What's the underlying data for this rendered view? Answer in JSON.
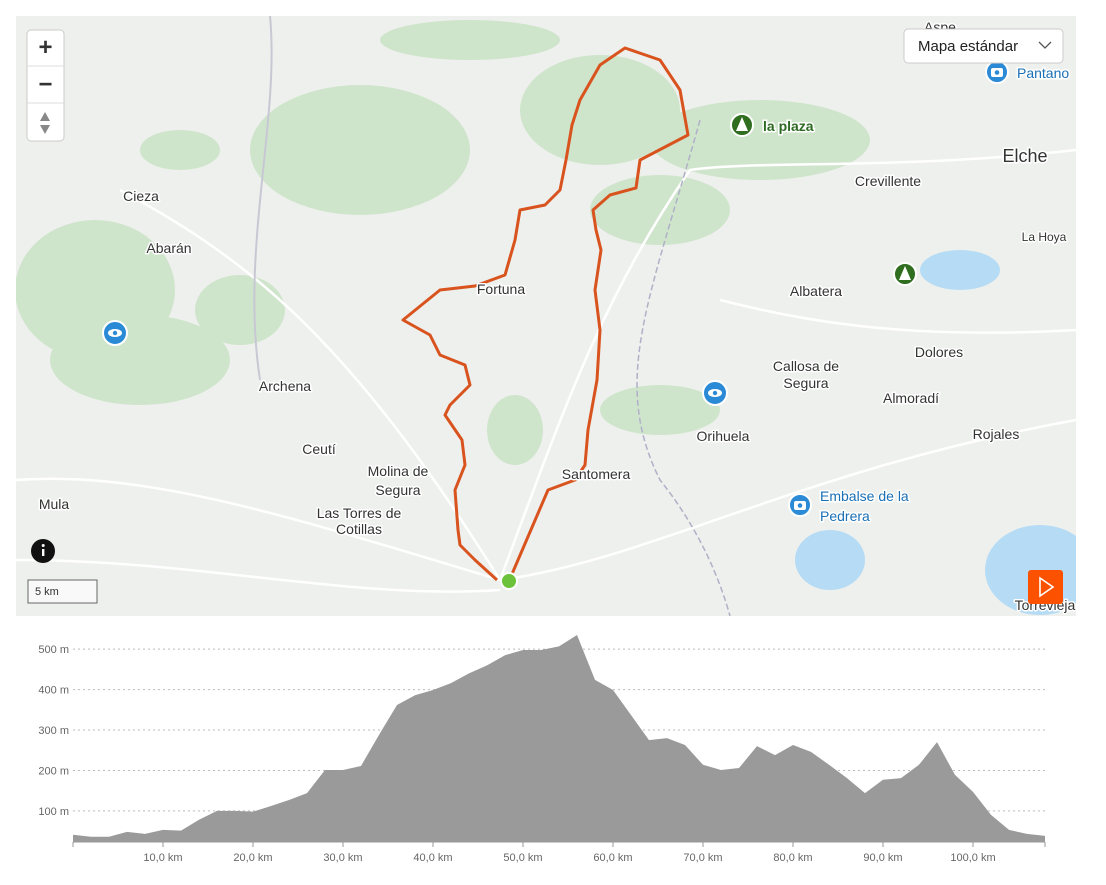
{
  "map": {
    "zoom_in": "+",
    "zoom_out": "−",
    "style_selector": "Mapa estándar",
    "scale": "5 km",
    "places": [
      "Aspe",
      "Cieza",
      "Abarán",
      "Archena",
      "Ceutí",
      [
        "Molina de",
        "Segura"
      ],
      [
        "Las Torres de",
        "Cotillas"
      ],
      "Mula",
      "Fortuna",
      "Santomera",
      "Orihuela",
      [
        "Callosa de",
        "Segura"
      ],
      "Albatera",
      "Crevillente",
      "Elche",
      "La Hoya",
      "Dolores",
      "Almoradí",
      "Rojales",
      "Torrevieja"
    ],
    "pois": [
      "Pantano",
      "la plaza",
      [
        "Embalse de la",
        "Pedrera"
      ]
    ]
  },
  "chart_data": {
    "type": "area",
    "color": "#9a9a9a",
    "x": [
      0,
      2,
      4,
      6,
      8,
      10,
      12,
      14,
      16,
      18,
      20,
      22,
      24,
      26,
      28,
      30,
      32,
      34,
      36,
      38,
      40,
      42,
      44,
      46,
      48,
      50,
      52,
      54,
      56,
      58,
      60,
      62,
      64,
      66,
      68,
      70,
      72,
      74,
      76,
      78,
      80,
      82,
      84,
      86,
      88,
      90,
      92,
      94,
      96,
      98,
      100,
      102,
      104,
      106,
      108
    ],
    "values": [
      41,
      36,
      36,
      48,
      43,
      53,
      51,
      78,
      100,
      100,
      98,
      112,
      127,
      144,
      201,
      201,
      211,
      288,
      362,
      386,
      399,
      416,
      440,
      460,
      485,
      498,
      498,
      507,
      535,
      424,
      399,
      337,
      275,
      280,
      263,
      214,
      201,
      206,
      260,
      238,
      263,
      246,
      214,
      181,
      144,
      177,
      181,
      214,
      270,
      189,
      147,
      90,
      53,
      43,
      38
    ],
    "xlim": [
      0,
      108
    ],
    "ylim": [
      23,
      535
    ],
    "xticks": [
      {
        "value": 10,
        "label": "10,0 km"
      },
      {
        "value": 20,
        "label": "20,0 km"
      },
      {
        "value": 30,
        "label": "30,0 km"
      },
      {
        "value": 40,
        "label": "40,0 km"
      },
      {
        "value": 50,
        "label": "50,0 km"
      },
      {
        "value": 60,
        "label": "60,0 km"
      },
      {
        "value": 70,
        "label": "70,0 km"
      },
      {
        "value": 80,
        "label": "80,0 km"
      },
      {
        "value": 90,
        "label": "90,0 km"
      },
      {
        "value": 100,
        "label": "100,0 km"
      }
    ],
    "yticks": [
      {
        "value": 100,
        "label": "100 m"
      },
      {
        "value": 200,
        "label": "200 m"
      },
      {
        "value": 300,
        "label": "300 m"
      },
      {
        "value": 400,
        "label": "400 m"
      },
      {
        "value": 500,
        "label": "500 m"
      }
    ],
    "grid": true
  }
}
